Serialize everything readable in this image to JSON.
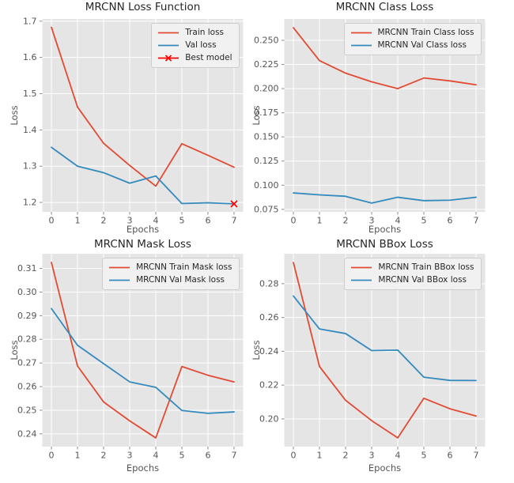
{
  "figure": {
    "background": "#ffffff",
    "description": "2x2 grid of MRCNN training loss curves over epochs"
  },
  "style": {
    "axes_bg": "#e5e5e5",
    "grid": "#ffffff",
    "tick_color": "#8a8a8a",
    "tick_label_color": "#555555",
    "label_color": "#555555",
    "title_color": "#262626",
    "train_color": "#e24a33",
    "val_color": "#348abd",
    "best_color": "#ff0000",
    "legend_bg": "#f1f1f1",
    "legend_border": "#cdcdcd",
    "legend_text": "#262626"
  },
  "chart_data": [
    {
      "type": "line",
      "title": "MRCNN Loss Function",
      "xlabel": "Epochs",
      "ylabel": "Loss",
      "x": [
        0,
        1,
        2,
        3,
        4,
        5,
        6,
        7
      ],
      "xlim": [
        -0.35,
        7.35
      ],
      "ylim": [
        1.174,
        1.706
      ],
      "xticks": [
        0,
        1,
        2,
        3,
        4,
        5,
        6,
        7
      ],
      "xtick_labels": [
        "0",
        "1",
        "2",
        "3",
        "4",
        "5",
        "6",
        "7"
      ],
      "yticks": [
        1.2,
        1.3,
        1.4,
        1.5,
        1.6,
        1.7
      ],
      "ytick_labels": [
        "1.2",
        "1.3",
        "1.4",
        "1.5",
        "1.6",
        "1.7"
      ],
      "grid": true,
      "legend_position": "upper right",
      "series": [
        {
          "name": "Train loss",
          "color": "#e24a33",
          "values": [
            1.683,
            1.463,
            1.363,
            1.302,
            1.245,
            1.362,
            1.33,
            1.297
          ]
        },
        {
          "name": "Val loss",
          "color": "#348abd",
          "values": [
            1.352,
            1.3,
            1.282,
            1.253,
            1.273,
            1.197,
            1.199,
            1.196
          ]
        }
      ],
      "markers": [
        {
          "name": "Best model",
          "marker": "x",
          "color": "#ff0000",
          "x": 7,
          "y": 1.196
        }
      ],
      "legend_entries": [
        {
          "label": "Train loss",
          "color": "#e24a33",
          "type": "line"
        },
        {
          "label": "Val loss",
          "color": "#348abd",
          "type": "line"
        },
        {
          "label": "Best model",
          "color": "#ff0000",
          "type": "line-x"
        }
      ]
    },
    {
      "type": "line",
      "title": "MRCNN Class Loss",
      "xlabel": "Epochs",
      "ylabel": "Loss",
      "x": [
        0,
        1,
        2,
        3,
        4,
        5,
        6,
        7
      ],
      "xlim": [
        -0.35,
        7.35
      ],
      "ylim": [
        0.0724,
        0.2721
      ],
      "xticks": [
        0,
        1,
        2,
        3,
        4,
        5,
        6,
        7
      ],
      "xtick_labels": [
        "0",
        "1",
        "2",
        "3",
        "4",
        "5",
        "6",
        "7"
      ],
      "yticks": [
        0.075,
        0.1,
        0.125,
        0.15,
        0.175,
        0.2,
        0.225,
        0.25
      ],
      "ytick_labels": [
        "0.075",
        "0.100",
        "0.125",
        "0.150",
        "0.175",
        "0.200",
        "0.225",
        "0.250"
      ],
      "grid": true,
      "legend_position": "upper right",
      "series": [
        {
          "name": "MRCNN Train Class loss",
          "color": "#e24a33",
          "values": [
            0.263,
            0.229,
            0.216,
            0.207,
            0.2,
            0.211,
            0.208,
            0.204
          ]
        },
        {
          "name": "MRCNN Val Class loss",
          "color": "#348abd",
          "values": [
            0.092,
            0.09,
            0.0885,
            0.0815,
            0.0875,
            0.084,
            0.0845,
            0.0875
          ]
        }
      ],
      "markers": [],
      "legend_entries": [
        {
          "label": "MRCNN Train Class loss",
          "color": "#e24a33",
          "type": "line"
        },
        {
          "label": "MRCNN Val Class loss",
          "color": "#348abd",
          "type": "line"
        }
      ]
    },
    {
      "type": "line",
      "title": "MRCNN Mask Loss",
      "xlabel": "Epochs",
      "ylabel": "Loss",
      "x": [
        0,
        1,
        2,
        3,
        4,
        5,
        6,
        7
      ],
      "xlim": [
        -0.35,
        7.35
      ],
      "ylim": [
        0.2346,
        0.3162
      ],
      "xticks": [
        0,
        1,
        2,
        3,
        4,
        5,
        6,
        7
      ],
      "xtick_labels": [
        "0",
        "1",
        "2",
        "3",
        "4",
        "5",
        "6",
        "7"
      ],
      "yticks": [
        0.24,
        0.25,
        0.26,
        0.27,
        0.28,
        0.29,
        0.3,
        0.31
      ],
      "ytick_labels": [
        "0.24",
        "0.25",
        "0.26",
        "0.27",
        "0.28",
        "0.29",
        "0.30",
        "0.31"
      ],
      "grid": true,
      "legend_position": "upper right",
      "series": [
        {
          "name": "MRCNN Train Mask loss",
          "color": "#e24a33",
          "values": [
            0.3125,
            0.2687,
            0.2535,
            0.2455,
            0.2383,
            0.2685,
            0.2648,
            0.262
          ]
        },
        {
          "name": "MRCNN Val Mask loss",
          "color": "#348abd",
          "values": [
            0.293,
            0.2775,
            0.2697,
            0.262,
            0.2597,
            0.2499,
            0.2487,
            0.2493
          ]
        }
      ],
      "markers": [],
      "legend_entries": [
        {
          "label": "MRCNN Train Mask loss",
          "color": "#e24a33",
          "type": "line"
        },
        {
          "label": "MRCNN Val Mask loss",
          "color": "#348abd",
          "type": "line"
        }
      ]
    },
    {
      "type": "line",
      "title": "MRCNN BBox Loss",
      "xlabel": "Epochs",
      "ylabel": "Loss",
      "x": [
        0,
        1,
        2,
        3,
        4,
        5,
        6,
        7
      ],
      "xlim": [
        -0.35,
        7.35
      ],
      "ylim": [
        0.1836,
        0.2977
      ],
      "xticks": [
        0,
        1,
        2,
        3,
        4,
        5,
        6,
        7
      ],
      "xtick_labels": [
        "0",
        "1",
        "2",
        "3",
        "4",
        "5",
        "6",
        "7"
      ],
      "yticks": [
        0.2,
        0.22,
        0.24,
        0.26,
        0.28
      ],
      "ytick_labels": [
        "0.20",
        "0.22",
        "0.24",
        "0.26",
        "0.28"
      ],
      "grid": true,
      "legend_position": "upper right",
      "series": [
        {
          "name": "MRCNN Train BBox loss",
          "color": "#e24a33",
          "values": [
            0.2925,
            0.231,
            0.211,
            0.199,
            0.1888,
            0.2122,
            0.206,
            0.2017
          ]
        },
        {
          "name": "MRCNN Val BBox loss",
          "color": "#348abd",
          "values": [
            0.2727,
            0.2532,
            0.2505,
            0.2404,
            0.2407,
            0.2247,
            0.2228,
            0.2227
          ]
        }
      ],
      "markers": [],
      "legend_entries": [
        {
          "label": "MRCNN Train BBox loss",
          "color": "#e24a33",
          "type": "line"
        },
        {
          "label": "MRCNN Val BBox loss",
          "color": "#348abd",
          "type": "line"
        }
      ]
    }
  ]
}
